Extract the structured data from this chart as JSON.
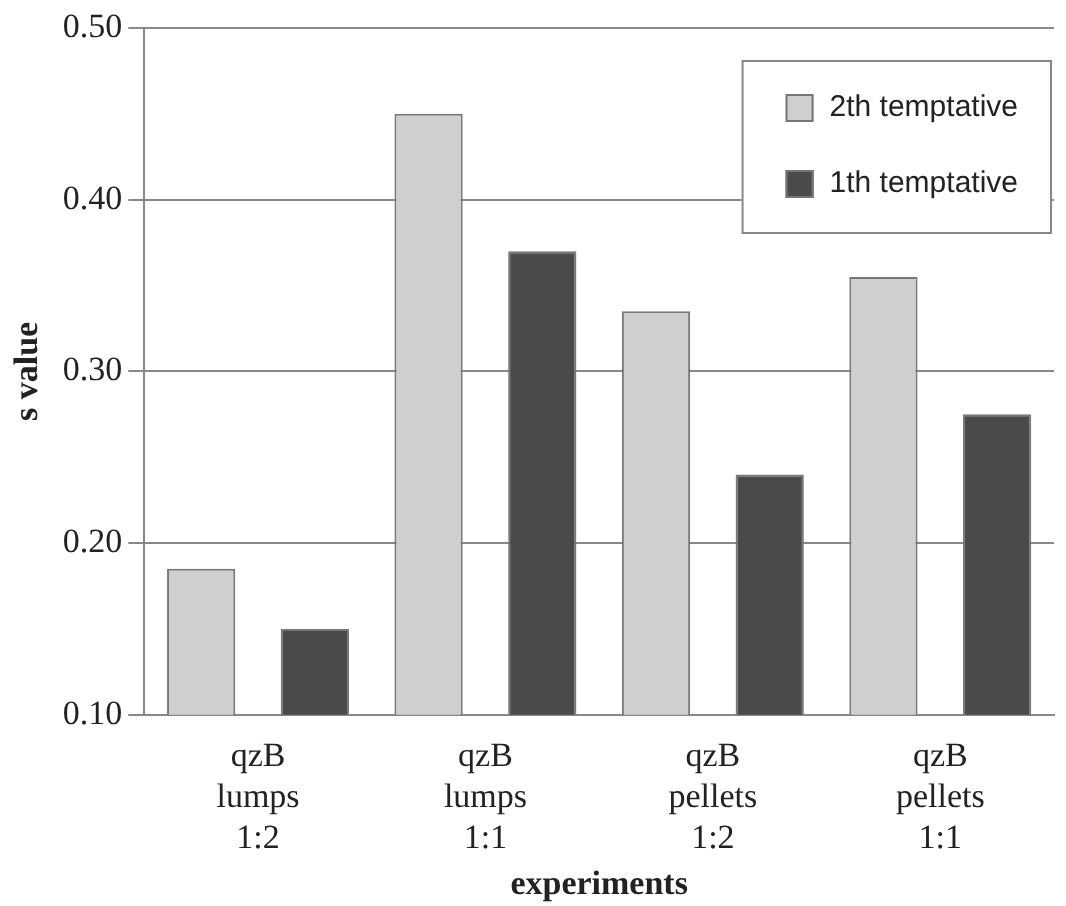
{
  "chart_data": {
    "type": "bar",
    "xlabel": "experiments",
    "ylabel": "s value",
    "categories": [
      "qzB\nlumps\n1:2",
      "qzB\nlumps\n1:1",
      "qzB\npellets\n1:2",
      "qzB\npellets\n1:1"
    ],
    "series": [
      {
        "name": "2th temptative",
        "color": "#cfcfcf",
        "values": [
          0.185,
          0.45,
          0.335,
          0.355
        ]
      },
      {
        "name": "1th temptative",
        "color": "#4a4a4a",
        "values": [
          0.15,
          0.37,
          0.24,
          0.275
        ]
      }
    ],
    "ylim": [
      0.1,
      0.5
    ],
    "yticks": [
      {
        "value": 0.1,
        "label": "0.10"
      },
      {
        "value": 0.2,
        "label": "0.20"
      },
      {
        "value": 0.3,
        "label": "0.30"
      },
      {
        "value": 0.4,
        "label": "0.40"
      },
      {
        "value": 0.5,
        "label": "0.50"
      }
    ],
    "grid": "y",
    "legend": "top right"
  }
}
